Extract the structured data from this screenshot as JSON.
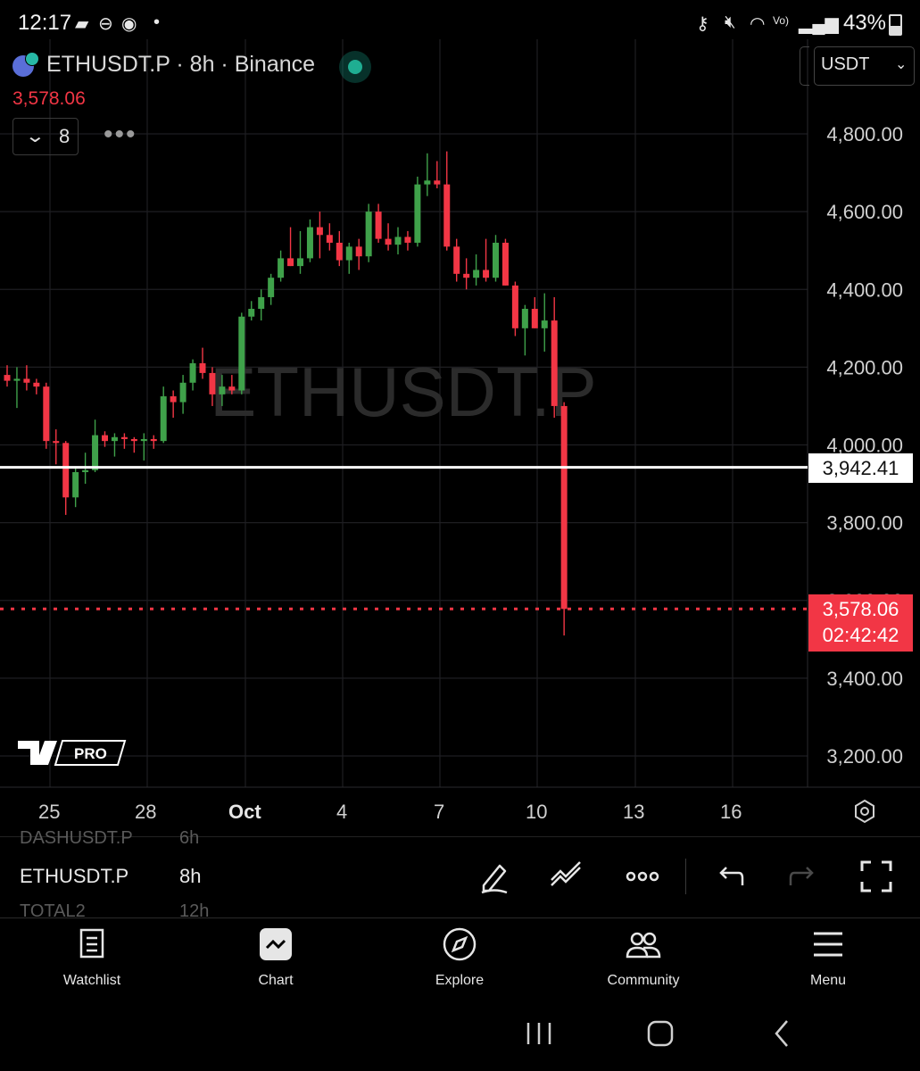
{
  "status_bar": {
    "time": "12:17",
    "battery": "43%",
    "battery_level": 0.43
  },
  "chart_header": {
    "symbol_title": "ETHUSDT.P · 8h · Binance",
    "last_price": "3,578.06",
    "indicator_count": "8",
    "currency": "USDT",
    "watermark": "ETHUSDT.P",
    "logo_text": "PRO"
  },
  "price_tags": {
    "line_price": "3,942.41",
    "current_price": "3,578.06",
    "countdown": "02:42:42"
  },
  "chart_data": {
    "type": "candlestick",
    "symbol": "ETHUSDT.P",
    "interval": "8h",
    "exchange": "Binance",
    "y_ticks": [
      3200,
      3400,
      3600,
      3800,
      4000,
      4200,
      4400,
      4600,
      4800
    ],
    "y_tick_labels": [
      "3,200.00",
      "3,400.00",
      "3,600.00",
      "3,800.00",
      "4,000.00",
      "4,200.00",
      "4,400.00",
      "4,600.00",
      "4,800.00"
    ],
    "ylim": [
      3125,
      4960
    ],
    "x_tick_labels": [
      "25",
      "28",
      "Oct",
      "4",
      "7",
      "10",
      "13",
      "16"
    ],
    "horizontal_line": 3942.41,
    "current_price": 3578.06,
    "up_color": "#26a69a",
    "candle_up_color": "#3fa14a",
    "candle_down_color": "#f23645",
    "candles": [
      {
        "o": 4180,
        "h": 4205,
        "l": 4150,
        "c": 4165
      },
      {
        "o": 4165,
        "h": 4200,
        "l": 4095,
        "c": 4170
      },
      {
        "o": 4170,
        "h": 4205,
        "l": 4140,
        "c": 4160
      },
      {
        "o": 4160,
        "h": 4170,
        "l": 4130,
        "c": 4150
      },
      {
        "o": 4150,
        "h": 4160,
        "l": 3990,
        "c": 4010
      },
      {
        "o": 4010,
        "h": 4040,
        "l": 3950,
        "c": 4005
      },
      {
        "o": 4005,
        "h": 4010,
        "l": 3820,
        "c": 3865
      },
      {
        "o": 3865,
        "h": 3940,
        "l": 3840,
        "c": 3930
      },
      {
        "o": 3930,
        "h": 3980,
        "l": 3900,
        "c": 3935
      },
      {
        "o": 3935,
        "h": 4065,
        "l": 3930,
        "c": 4025
      },
      {
        "o": 4025,
        "h": 4035,
        "l": 3995,
        "c": 4010
      },
      {
        "o": 4010,
        "h": 4030,
        "l": 3970,
        "c": 4020
      },
      {
        "o": 4020,
        "h": 4030,
        "l": 3990,
        "c": 4015
      },
      {
        "o": 4015,
        "h": 4020,
        "l": 3980,
        "c": 4010
      },
      {
        "o": 4010,
        "h": 4030,
        "l": 3960,
        "c": 4015
      },
      {
        "o": 4015,
        "h": 4025,
        "l": 3990,
        "c": 4010
      },
      {
        "o": 4010,
        "h": 4150,
        "l": 4005,
        "c": 4125
      },
      {
        "o": 4125,
        "h": 4140,
        "l": 4070,
        "c": 4110
      },
      {
        "o": 4110,
        "h": 4180,
        "l": 4080,
        "c": 4160
      },
      {
        "o": 4160,
        "h": 4220,
        "l": 4140,
        "c": 4210
      },
      {
        "o": 4210,
        "h": 4250,
        "l": 4170,
        "c": 4185
      },
      {
        "o": 4185,
        "h": 4200,
        "l": 4100,
        "c": 4130
      },
      {
        "o": 4130,
        "h": 4180,
        "l": 4100,
        "c": 4150
      },
      {
        "o": 4150,
        "h": 4180,
        "l": 4130,
        "c": 4140
      },
      {
        "o": 4140,
        "h": 4340,
        "l": 4130,
        "c": 4330
      },
      {
        "o": 4330,
        "h": 4370,
        "l": 4320,
        "c": 4350
      },
      {
        "o": 4350,
        "h": 4400,
        "l": 4320,
        "c": 4380
      },
      {
        "o": 4380,
        "h": 4440,
        "l": 4360,
        "c": 4430
      },
      {
        "o": 4430,
        "h": 4500,
        "l": 4420,
        "c": 4480
      },
      {
        "o": 4480,
        "h": 4560,
        "l": 4460,
        "c": 4460
      },
      {
        "o": 4460,
        "h": 4550,
        "l": 4440,
        "c": 4480
      },
      {
        "o": 4480,
        "h": 4580,
        "l": 4470,
        "c": 4560
      },
      {
        "o": 4560,
        "h": 4600,
        "l": 4480,
        "c": 4540
      },
      {
        "o": 4540,
        "h": 4570,
        "l": 4500,
        "c": 4520
      },
      {
        "o": 4520,
        "h": 4550,
        "l": 4460,
        "c": 4475
      },
      {
        "o": 4475,
        "h": 4520,
        "l": 4440,
        "c": 4510
      },
      {
        "o": 4510,
        "h": 4530,
        "l": 4450,
        "c": 4485
      },
      {
        "o": 4485,
        "h": 4620,
        "l": 4470,
        "c": 4600
      },
      {
        "o": 4600,
        "h": 4620,
        "l": 4520,
        "c": 4530
      },
      {
        "o": 4530,
        "h": 4570,
        "l": 4500,
        "c": 4515
      },
      {
        "o": 4515,
        "h": 4560,
        "l": 4490,
        "c": 4535
      },
      {
        "o": 4535,
        "h": 4550,
        "l": 4500,
        "c": 4520
      },
      {
        "o": 4520,
        "h": 4690,
        "l": 4510,
        "c": 4670
      },
      {
        "o": 4670,
        "h": 4750,
        "l": 4640,
        "c": 4680
      },
      {
        "o": 4680,
        "h": 4730,
        "l": 4660,
        "c": 4670
      },
      {
        "o": 4670,
        "h": 4755,
        "l": 4500,
        "c": 4510
      },
      {
        "o": 4510,
        "h": 4530,
        "l": 4420,
        "c": 4440
      },
      {
        "o": 4440,
        "h": 4480,
        "l": 4400,
        "c": 4430
      },
      {
        "o": 4430,
        "h": 4490,
        "l": 4410,
        "c": 4450
      },
      {
        "o": 4450,
        "h": 4530,
        "l": 4420,
        "c": 4430
      },
      {
        "o": 4430,
        "h": 4540,
        "l": 4420,
        "c": 4520
      },
      {
        "o": 4520,
        "h": 4530,
        "l": 4410,
        "c": 4410
      },
      {
        "o": 4410,
        "h": 4420,
        "l": 4280,
        "c": 4300
      },
      {
        "o": 4300,
        "h": 4360,
        "l": 4230,
        "c": 4350
      },
      {
        "o": 4350,
        "h": 4380,
        "l": 4300,
        "c": 4300
      },
      {
        "o": 4300,
        "h": 4390,
        "l": 4240,
        "c": 4320
      },
      {
        "o": 4320,
        "h": 4380,
        "l": 4070,
        "c": 4100
      },
      {
        "o": 4100,
        "h": 4110,
        "l": 3510,
        "c": 3578.06
      }
    ]
  },
  "toolbar": {
    "watchlist_prev": "DASHUSDT.P",
    "watchlist_prev_interval": "6h",
    "active_symbol": "ETHUSDT.P",
    "active_interval": "8h",
    "watchlist_next": "TOTAL2",
    "watchlist_next_interval": "12h",
    "icons": [
      "pencil-icon",
      "trend-tool-icon",
      "more-icon",
      "undo-icon",
      "redo-icon",
      "fullscreen-icon"
    ]
  },
  "bottom_nav": [
    {
      "label": "Watchlist",
      "icon": "watchlist-icon"
    },
    {
      "label": "Chart",
      "icon": "chart-icon"
    },
    {
      "label": "Explore",
      "icon": "compass-icon"
    },
    {
      "label": "Community",
      "icon": "community-icon"
    },
    {
      "label": "Menu",
      "icon": "hamburger-icon"
    }
  ]
}
